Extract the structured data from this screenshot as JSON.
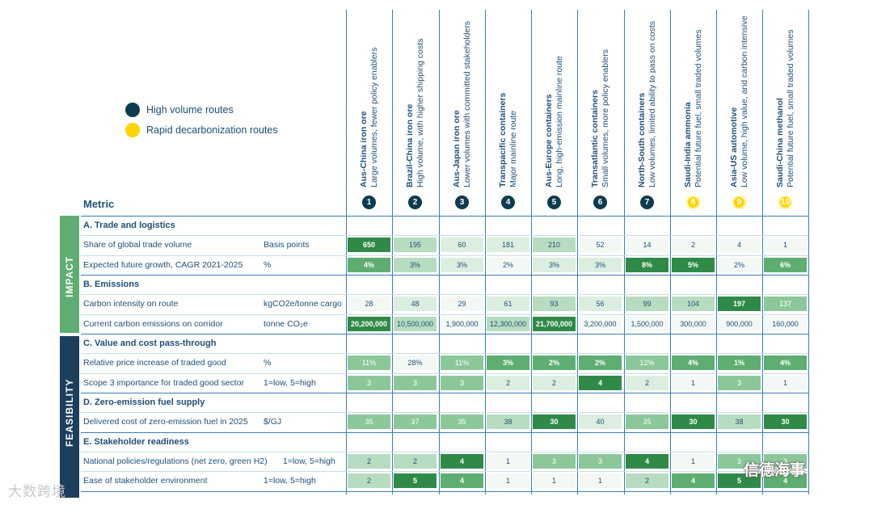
{
  "legend": {
    "high_volume": "High volume routes",
    "rapid": "Rapid decarbonization routes",
    "colors": {
      "high_volume": "#0d3b4f",
      "rapid": "#ffd400"
    }
  },
  "metric_header": "Metric",
  "side_labels": {
    "impact": "IMPACT",
    "feasibility": "FEASIBILITY"
  },
  "watermarks": {
    "left": "大数跨境",
    "right": "信德海事"
  },
  "chart_data": {
    "type": "table",
    "routes": [
      {
        "num": "1",
        "title": "Aus-China iron ore",
        "subtitle": "Large volumes, fewer policy enablers",
        "group": "high_volume"
      },
      {
        "num": "2",
        "title": "Brazil-China iron ore",
        "subtitle": "High volume, with higher shipping costs",
        "group": "high_volume"
      },
      {
        "num": "3",
        "title": "Aus-Japan iron ore",
        "subtitle": "Lower volumes with committed stakeholders",
        "group": "high_volume"
      },
      {
        "num": "4",
        "title": "Transpacific containers",
        "subtitle": "Major mainline route",
        "group": "high_volume"
      },
      {
        "num": "5",
        "title": "Aus-Europe containers",
        "subtitle": "Long, high-emission mainline route",
        "group": "high_volume"
      },
      {
        "num": "6",
        "title": "Transatlantic containers",
        "subtitle": "Small volumes, more policy enablers",
        "group": "high_volume"
      },
      {
        "num": "7",
        "title": "North-South containers",
        "subtitle": "Low volumes, limited ability to pass on costs",
        "group": "high_volume"
      },
      {
        "num": "8",
        "title": "Saudi-India ammonia",
        "subtitle": "Potential future fuel, small traded volumes",
        "group": "rapid"
      },
      {
        "num": "9",
        "title": "Asia-US automotive",
        "subtitle": "Low volume, high value, and carbon intensive",
        "group": "rapid"
      },
      {
        "num": "10",
        "title": "Saudi-China methanol",
        "subtitle": "Potential future fuel, small traded volumes",
        "group": "rapid"
      }
    ],
    "sections": [
      {
        "title": "A. Trade and logistics",
        "rows": [
          {
            "metric": "Share of global trade volume",
            "unit": "Basis points",
            "values": [
              "650",
              "195",
              "60",
              "181",
              "210",
              "52",
              "14",
              "2",
              "4",
              "1"
            ],
            "levels": [
              5,
              2,
              1,
              1,
              2,
              0,
              0,
              0,
              0,
              0
            ]
          },
          {
            "metric": "Expected future growth, CAGR 2021-2025",
            "unit": "%",
            "values": [
              "4%",
              "3%",
              "3%",
              "2%",
              "3%",
              "3%",
              "8%",
              "5%",
              "2%",
              "6%"
            ],
            "levels": [
              4,
              2,
              1,
              0,
              1,
              1,
              5,
              5,
              0,
              4
            ]
          }
        ]
      },
      {
        "title": "B. Emissions",
        "rows": [
          {
            "metric": "Carbon intensity on route",
            "unit": "kgCO2e/tonne cargo",
            "values": [
              "28",
              "48",
              "29",
              "61",
              "93",
              "56",
              "99",
              "104",
              "197",
              "137"
            ],
            "levels": [
              0,
              1,
              0,
              1,
              2,
              1,
              2,
              2,
              5,
              3
            ]
          },
          {
            "metric": "Current carbon emissions on corridor",
            "unit": "tonne CO₂e",
            "values": [
              "20,200,000",
              "10,500,000",
              "1,900,000",
              "12,300,000",
              "21,700,000",
              "3,200,000",
              "1,500,000",
              "300,000",
              "900,000",
              "160,000"
            ],
            "levels": [
              5,
              2,
              0,
              2,
              5,
              0,
              0,
              0,
              0,
              0
            ]
          }
        ]
      },
      {
        "title": "C. Value and cost pass-through",
        "rows": [
          {
            "metric": "Relative price increase of traded good",
            "unit": "%",
            "values": [
              "11%",
              "28%",
              "11%",
              "3%",
              "2%",
              "2%",
              "12%",
              "4%",
              "1%",
              "4%"
            ],
            "levels": [
              3,
              0,
              3,
              4,
              4,
              4,
              3,
              4,
              4,
              4
            ]
          },
          {
            "metric": "Scope 3 importance for traded good sector",
            "unit": "1=low, 5=high",
            "values": [
              "3",
              "3",
              "3",
              "2",
              "2",
              "4",
              "2",
              "1",
              "3",
              "1"
            ],
            "levels": [
              3,
              3,
              3,
              1,
              1,
              5,
              1,
              0,
              3,
              0
            ]
          }
        ]
      },
      {
        "title": "D. Zero-emission fuel supply",
        "rows": [
          {
            "metric": "Delivered cost of zero-emission fuel in 2025",
            "unit": "$/GJ",
            "values": [
              "35",
              "37",
              "35",
              "38",
              "30",
              "40",
              "35",
              "30",
              "38",
              "30"
            ],
            "levels": [
              3,
              3,
              3,
              2,
              5,
              1,
              3,
              5,
              2,
              5
            ]
          }
        ]
      },
      {
        "title": "E. Stakeholder readiness",
        "rows": [
          {
            "metric": "National policies/regulations (net zero, green H2)",
            "unit": "1=low, 5=high",
            "values": [
              "2",
              "2",
              "4",
              "1",
              "3",
              "3",
              "4",
              "1",
              "3",
              "3"
            ],
            "levels": [
              2,
              2,
              5,
              0,
              3,
              3,
              5,
              0,
              3,
              3
            ]
          },
          {
            "metric": "Ease of stakeholder environment",
            "unit": "1=low, 5=high",
            "values": [
              "2",
              "5",
              "4",
              "1",
              "1",
              "1",
              "2",
              "4",
              "5",
              "4"
            ],
            "levels": [
              2,
              5,
              4,
              0,
              0,
              0,
              2,
              4,
              5,
              4
            ]
          }
        ]
      }
    ],
    "shade_colors": [
      "#f4f8f5",
      "#dceee0",
      "#b8dcc0",
      "#8cc79a",
      "#5fae71",
      "#2f8a47"
    ],
    "section_colors": {
      "impact": "#5fae71",
      "feasibility": "#1d3f5e"
    }
  }
}
